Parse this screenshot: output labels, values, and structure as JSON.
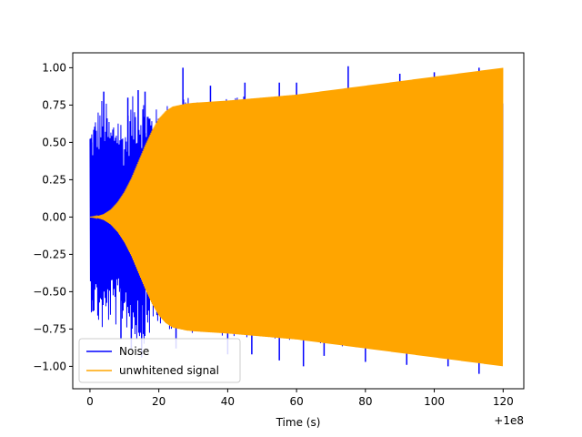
{
  "chart_data": {
    "type": "line",
    "title": "",
    "xlabel": "Time (s)",
    "ylabel": "",
    "x_offset_label": "+1e8",
    "xlim": [
      -5,
      126
    ],
    "ylim": [
      -1.15,
      1.1
    ],
    "x_ticks": [
      0,
      20,
      40,
      60,
      80,
      100,
      120
    ],
    "x_tick_labels": [
      "0",
      "20",
      "40",
      "60",
      "80",
      "100",
      "120"
    ],
    "y_ticks": [
      -1.0,
      -0.75,
      -0.5,
      -0.25,
      0.0,
      0.25,
      0.5,
      0.75,
      1.0
    ],
    "y_tick_labels": [
      "−1.00",
      "−0.75",
      "−0.50",
      "−0.25",
      "0.00",
      "0.25",
      "0.50",
      "0.75",
      "1.00"
    ],
    "grid": false,
    "legend_position": "lower-left",
    "series": [
      {
        "name": "Noise",
        "color": "#0000ff",
        "x_range": [
          0,
          120
        ],
        "envelope_x": [
          0,
          2,
          4,
          6,
          8,
          10,
          12,
          14,
          16,
          18,
          20,
          25,
          30,
          40,
          50,
          60,
          70,
          80,
          90,
          100,
          110,
          120
        ],
        "envelope_upper": [
          0.62,
          0.72,
          0.84,
          0.65,
          0.75,
          0.6,
          0.8,
          0.85,
          0.82,
          0.75,
          0.72,
          0.82,
          0.8,
          0.8,
          0.82,
          0.83,
          0.85,
          0.87,
          0.89,
          0.92,
          0.95,
          0.98
        ],
        "envelope_lower": [
          -0.62,
          -0.72,
          -0.8,
          -0.7,
          -0.75,
          -0.72,
          -0.82,
          -0.85,
          -0.85,
          -0.78,
          -0.75,
          -0.76,
          -0.78,
          -0.8,
          -0.82,
          -0.84,
          -0.86,
          -0.88,
          -0.9,
          -0.93,
          -0.96,
          -1.0
        ],
        "spikes_up": [
          [
            0.5,
            0.5
          ],
          [
            4,
            0.84
          ],
          [
            11,
            0.8
          ],
          [
            14,
            0.85
          ],
          [
            16,
            0.84
          ],
          [
            27,
            1.0
          ],
          [
            35,
            0.88
          ],
          [
            45,
            0.9
          ],
          [
            55,
            0.9
          ],
          [
            60,
            0.9
          ],
          [
            75,
            1.01
          ],
          [
            90,
            0.96
          ],
          [
            100,
            0.97
          ],
          [
            113,
            1.0
          ]
        ],
        "spikes_down": [
          [
            0.5,
            -0.63
          ],
          [
            9,
            -0.82
          ],
          [
            12,
            -0.88
          ],
          [
            15,
            -0.94
          ],
          [
            25,
            -0.88
          ],
          [
            40,
            -0.92
          ],
          [
            47,
            -0.92
          ],
          [
            55,
            -0.96
          ],
          [
            62,
            -1.0
          ],
          [
            68,
            -0.93
          ],
          [
            80,
            -0.97
          ],
          [
            92,
            -0.99
          ],
          [
            104,
            -1.0
          ],
          [
            113,
            -1.05
          ]
        ]
      },
      {
        "name": "unwhitened signal",
        "color": "#ffa500",
        "x_range": [
          0,
          120
        ],
        "envelope_x": [
          0,
          2,
          4,
          6,
          8,
          10,
          12,
          14,
          16,
          18,
          20,
          22,
          24,
          26,
          28,
          30,
          40,
          50,
          60,
          70,
          80,
          90,
          100,
          110,
          120
        ],
        "envelope_upper": [
          0.0,
          0.005,
          0.02,
          0.05,
          0.1,
          0.17,
          0.26,
          0.37,
          0.48,
          0.58,
          0.66,
          0.71,
          0.74,
          0.75,
          0.76,
          0.765,
          0.78,
          0.8,
          0.82,
          0.85,
          0.88,
          0.91,
          0.94,
          0.97,
          1.0
        ],
        "envelope_lower": [
          0.0,
          -0.005,
          -0.02,
          -0.05,
          -0.1,
          -0.17,
          -0.26,
          -0.37,
          -0.48,
          -0.58,
          -0.66,
          -0.71,
          -0.74,
          -0.75,
          -0.76,
          -0.765,
          -0.78,
          -0.8,
          -0.82,
          -0.85,
          -0.88,
          -0.91,
          -0.94,
          -0.97,
          -1.0
        ]
      }
    ]
  }
}
